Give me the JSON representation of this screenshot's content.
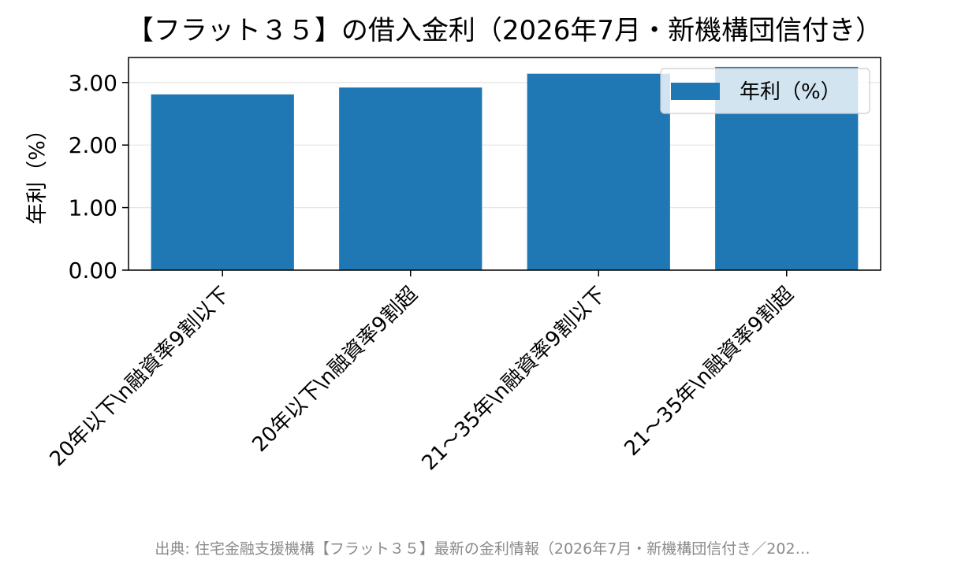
{
  "chart_data": {
    "type": "bar",
    "title": "【フラット３５】の借入金利（2026年7月・新機構団信付き）",
    "xlabel": "",
    "ylabel": "年利（%）",
    "categories": [
      "20年以下\\n融資率9割以下",
      "20年以下\\n融資率9割超",
      "21～35年\\n融資率9割以下",
      "21～35年\\n融資率9割超"
    ],
    "series": [
      {
        "name": "年利（%）",
        "values": [
          2.81,
          2.92,
          3.14,
          3.25
        ]
      }
    ],
    "ylim": [
      0,
      3.4
    ],
    "yticks": [
      "0.00",
      "1.00",
      "2.00",
      "3.00"
    ],
    "grid": "horizontal",
    "legend_position": "top-right",
    "bar_color": "#1f77b4"
  },
  "source_note": "出典: 住宅金融支援機構【フラット３５】最新の金利情報（2026年7月・新機構団信付き／202…"
}
